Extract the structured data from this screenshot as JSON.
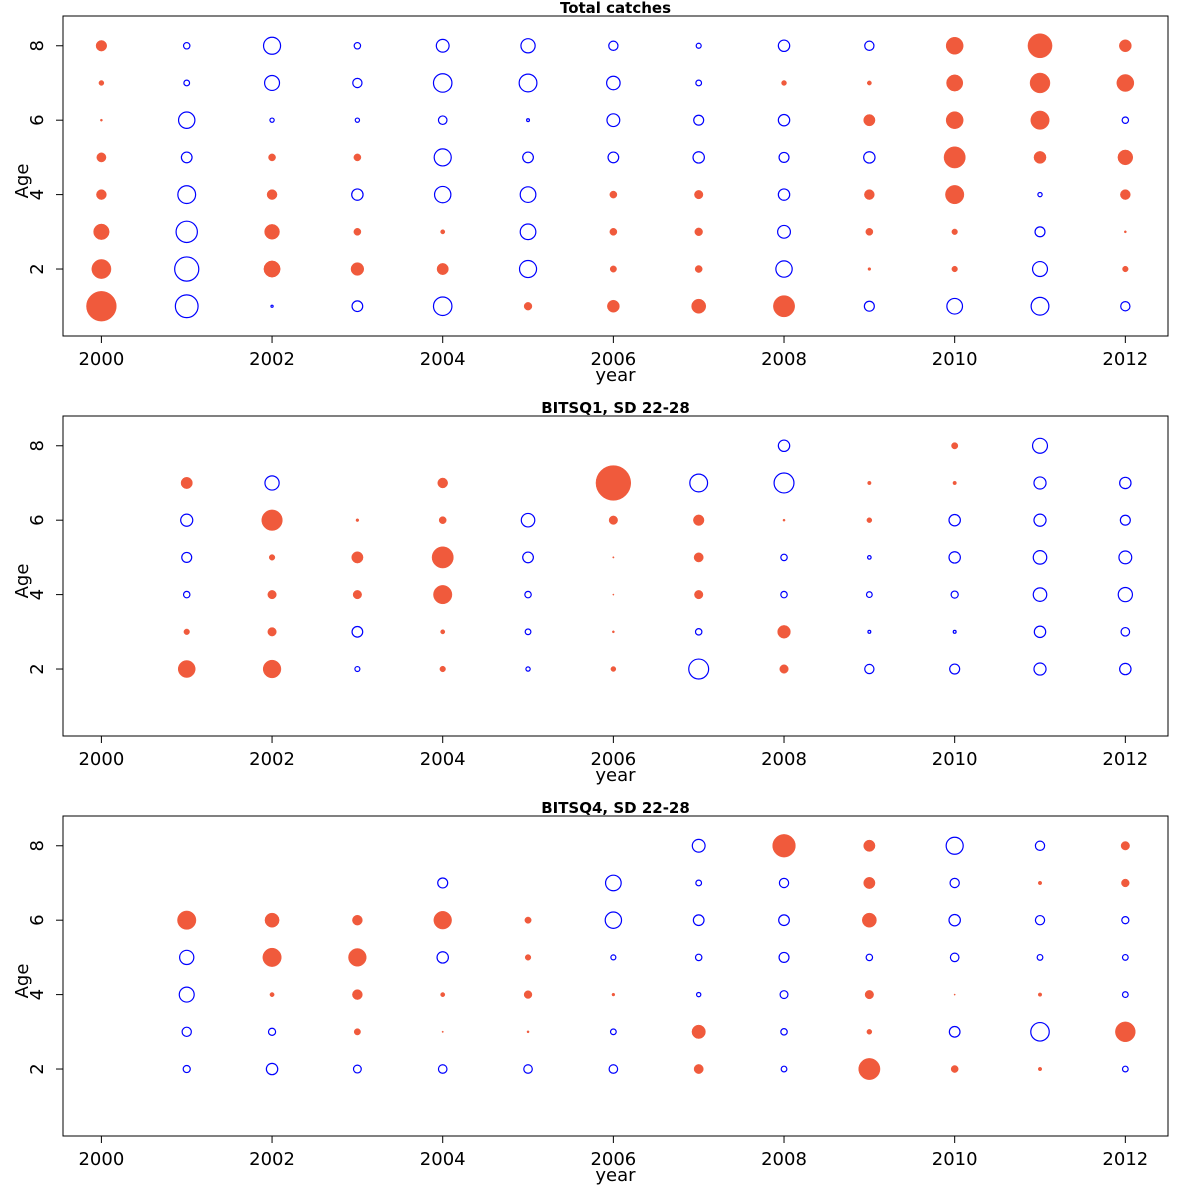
{
  "chart_data": [
    {
      "type": "scatter",
      "subtype": "bubble",
      "title": "Total catches",
      "xlabel": "year",
      "ylabel": "Age",
      "x_ticks": [
        2000,
        2002,
        2004,
        2006,
        2008,
        2010,
        2012
      ],
      "y_ticks": [
        2,
        4,
        6,
        8
      ],
      "xlim": [
        1999.55,
        2012.5
      ],
      "ylim": [
        0.2,
        8.8
      ],
      "legend": "none",
      "grid": false,
      "positive_color": "#f05a3c",
      "negative_color": "#0000ff",
      "ages": [
        1,
        2,
        3,
        4,
        5,
        6,
        7,
        8
      ],
      "years": [
        2000,
        2001,
        2002,
        2003,
        2004,
        2005,
        2006,
        2007,
        2008,
        2009,
        2010,
        2011,
        2012
      ],
      "residuals": [
        [
          4.2,
          2.7,
          2.2,
          1.4,
          1.3,
          0.3,
          0.7,
          1.5
        ],
        [
          -3.2,
          -3.4,
          -3.0,
          -2.5,
          -1.5,
          -2.3,
          -0.8,
          -0.9
        ],
        [
          -0.3,
          2.3,
          2.1,
          1.4,
          1.0,
          -0.6,
          -2.1,
          -2.4
        ],
        [
          -1.5,
          1.8,
          1.0,
          -1.6,
          1.0,
          -0.6,
          -1.3,
          -0.9
        ],
        [
          -2.6,
          1.6,
          0.6,
          -2.3,
          -2.4,
          -1.2,
          -2.6,
          -1.8
        ],
        [
          1.1,
          -2.4,
          -2.2,
          -2.2,
          -1.5,
          -0.4,
          -2.5,
          -2.0
        ],
        [
          1.7,
          0.9,
          1.0,
          1.0,
          -1.5,
          -1.8,
          -1.9,
          -1.3
        ],
        [
          2.0,
          1.0,
          1.1,
          1.2,
          -1.6,
          -1.4,
          -0.8,
          -0.7
        ],
        [
          3.0,
          -2.3,
          -1.8,
          -1.6,
          -1.4,
          -1.6,
          0.7,
          -1.6
        ],
        [
          -1.4,
          0.4,
          1.0,
          1.4,
          -1.6,
          1.6,
          0.6,
          -1.3
        ],
        [
          -2.2,
          0.8,
          0.8,
          2.6,
          3.0,
          2.4,
          2.3,
          2.4
        ],
        [
          -2.5,
          -2.1,
          -1.4,
          -0.6,
          1.7,
          2.6,
          2.8,
          3.4
        ],
        [
          -1.3,
          0.8,
          0.3,
          1.4,
          2.1,
          -0.9,
          2.4,
          1.7
        ]
      ]
    },
    {
      "type": "scatter",
      "subtype": "bubble",
      "title": "BITSQ1, SD 22-28",
      "xlabel": "year",
      "ylabel": "Age",
      "x_ticks": [
        2000,
        2002,
        2004,
        2006,
        2008,
        2010,
        2012
      ],
      "y_ticks": [
        2,
        4,
        6,
        8
      ],
      "xlim": [
        1999.55,
        2012.5
      ],
      "ylim": [
        0.2,
        8.8
      ],
      "legend": "none",
      "grid": false,
      "positive_color": "#f05a3c",
      "negative_color": "#0000ff",
      "ages": [
        1,
        2,
        3,
        4,
        5,
        6,
        7,
        8
      ],
      "years": [
        2000,
        2001,
        2002,
        2003,
        2004,
        2005,
        2006,
        2007,
        2008,
        2009,
        2010,
        2011,
        2012
      ],
      "residuals": [
        [
          null,
          null,
          null,
          null,
          null,
          null,
          null,
          null
        ],
        [
          null,
          2.4,
          0.8,
          -0.9,
          -1.4,
          -1.7,
          1.6,
          null
        ],
        [
          null,
          2.5,
          1.2,
          1.2,
          0.8,
          2.9,
          -2.0,
          null
        ],
        [
          null,
          -0.7,
          -1.5,
          1.2,
          1.6,
          0.4,
          null,
          null
        ],
        [
          null,
          0.8,
          0.6,
          2.6,
          3.0,
          1.0,
          1.4,
          null
        ],
        [
          null,
          -0.6,
          -0.8,
          -0.9,
          -1.5,
          -1.9,
          null,
          null
        ],
        [
          null,
          0.7,
          0.3,
          0.1,
          0.2,
          1.2,
          4.9,
          null
        ],
        [
          null,
          -2.8,
          -0.9,
          1.2,
          1.3,
          1.5,
          -2.5,
          null
        ],
        [
          null,
          1.2,
          1.8,
          -0.9,
          -0.9,
          0.3,
          -2.8,
          -1.6
        ],
        [
          null,
          -1.3,
          -0.4,
          -0.8,
          -0.5,
          0.7,
          0.5,
          null
        ],
        [
          null,
          -1.4,
          -0.4,
          -1.0,
          -1.6,
          -1.6,
          0.5,
          0.9
        ],
        [
          null,
          -1.7,
          -1.6,
          -1.9,
          -1.9,
          -1.7,
          -1.7,
          -2.1
        ],
        [
          null,
          -1.6,
          -1.2,
          -2.0,
          -1.8,
          -1.4,
          -1.6,
          null
        ]
      ]
    },
    {
      "type": "scatter",
      "subtype": "bubble",
      "title": "BITSQ4, SD 22-28",
      "xlabel": "year",
      "ylabel": "Age",
      "x_ticks": [
        2000,
        2002,
        2004,
        2006,
        2008,
        2010,
        2012
      ],
      "y_ticks": [
        2,
        4,
        6,
        8
      ],
      "xlim": [
        1999.55,
        2012.5
      ],
      "ylim": [
        0.2,
        8.8
      ],
      "legend": "none",
      "grid": false,
      "positive_color": "#f05a3c",
      "negative_color": "#0000ff",
      "ages": [
        1,
        2,
        3,
        4,
        5,
        6,
        7,
        8
      ],
      "years": [
        2000,
        2001,
        2002,
        2003,
        2004,
        2005,
        2006,
        2007,
        2008,
        2009,
        2010,
        2011,
        2012
      ],
      "residuals": [
        [
          null,
          null,
          null,
          null,
          null,
          null,
          null,
          null
        ],
        [
          null,
          -1.0,
          -1.3,
          -2.1,
          -2.0,
          2.6,
          null,
          null
        ],
        [
          null,
          -1.6,
          -1.0,
          0.6,
          2.6,
          2.0,
          null,
          null
        ],
        [
          null,
          -1.1,
          0.9,
          1.4,
          2.5,
          1.4,
          null,
          null
        ],
        [
          null,
          -1.2,
          0.2,
          0.6,
          -1.6,
          2.5,
          -1.4,
          null
        ],
        [
          null,
          -1.2,
          0.3,
          1.1,
          0.8,
          0.9,
          null,
          null
        ],
        [
          null,
          -1.2,
          -0.8,
          0.4,
          -0.7,
          -2.3,
          -2.2,
          null
        ],
        [
          null,
          1.3,
          1.9,
          -0.6,
          -0.9,
          -1.5,
          -0.8,
          -1.8
        ],
        [
          null,
          -0.8,
          -0.9,
          -1.1,
          -1.4,
          -1.5,
          -1.3,
          3.2
        ],
        [
          null,
          3.0,
          0.7,
          1.2,
          -0.9,
          2.0,
          1.6,
          1.6
        ],
        [
          null,
          1.0,
          -1.5,
          0.1,
          -1.2,
          -1.6,
          -1.3,
          -2.4
        ],
        [
          null,
          0.5,
          -2.6,
          0.5,
          -0.8,
          -1.3,
          0.5,
          -1.3
        ],
        [
          null,
          -0.8,
          2.8,
          -0.8,
          -0.8,
          -1.0,
          1.1,
          1.2
        ]
      ]
    }
  ]
}
